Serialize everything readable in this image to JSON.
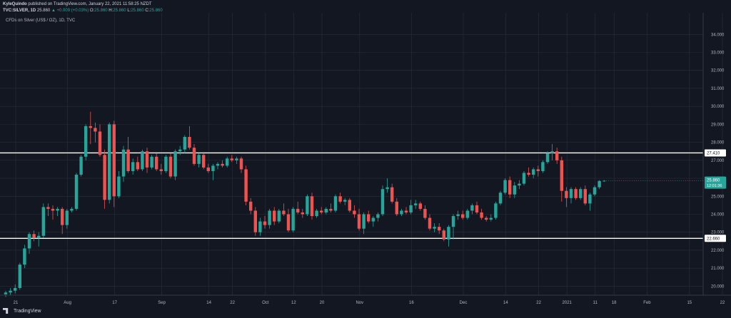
{
  "header": {
    "author": "KyleQuindo",
    "published": "published on TradingView.com, January 22, 2021 11:58:25 NZDT",
    "symbol": "TVC:SILVER, 1D",
    "price": "25.860",
    "change": "▲ +0.009 (+0.03%)",
    "ohlc": {
      "o_label": "O:",
      "o": "25.860",
      "h_label": "H:",
      "h": "25.860",
      "l_label": "L:",
      "l": "25.860",
      "c_label": "C:",
      "c": "25.860"
    }
  },
  "subtitle": "CFDs on Silver (US$ / OZ), 1D, TVC",
  "footer": {
    "brand": "TradingView"
  },
  "colors": {
    "background": "#131722",
    "up": "#26a69a",
    "down": "#ef5350",
    "grid": "#2a2e39",
    "level_line": "#ffffff",
    "current_price_bg": "#26a69a"
  },
  "chart_data": {
    "type": "candlestick",
    "title": "CFDs on Silver (US$ / OZ), 1D, TVC",
    "ylim": [
      19.5,
      35.2
    ],
    "y_ticks": [
      20.0,
      21.0,
      22.0,
      23.0,
      24.0,
      25.0,
      26.0,
      27.0,
      28.0,
      29.0,
      30.0,
      31.0,
      32.0,
      33.0,
      34.0
    ],
    "x_tick_labels": [
      "21",
      "Aug",
      "17",
      "Sep",
      "14",
      "22",
      "Oct",
      "12",
      "20",
      "Nov",
      "16",
      "Dec",
      "14",
      "22",
      "2021",
      "11",
      "18",
      "Feb",
      "15",
      "22"
    ],
    "grid": true,
    "horizontal_levels": [
      {
        "value": 27.41,
        "label": "27.410"
      },
      {
        "value": 22.66,
        "label": "22.660"
      }
    ],
    "current_price": {
      "value": 25.86,
      "label": "25.860",
      "countdown": "12:01:36"
    },
    "candles": [
      [
        19.55,
        19.75,
        19.4,
        19.65
      ],
      [
        19.65,
        19.9,
        19.5,
        19.75
      ],
      [
        19.75,
        20.1,
        19.6,
        19.9
      ],
      [
        19.9,
        21.3,
        19.8,
        21.2
      ],
      [
        21.2,
        22.3,
        21.0,
        22.1
      ],
      [
        22.1,
        23.0,
        21.8,
        22.9
      ],
      [
        22.9,
        23.1,
        22.5,
        22.7
      ],
      [
        22.7,
        23.0,
        22.2,
        22.8
      ],
      [
        22.8,
        24.6,
        22.7,
        24.4
      ],
      [
        24.4,
        24.6,
        23.9,
        24.3
      ],
      [
        24.3,
        24.5,
        23.7,
        24.2
      ],
      [
        24.2,
        24.4,
        23.9,
        24.3
      ],
      [
        24.3,
        24.4,
        22.9,
        23.4
      ],
      [
        23.4,
        24.3,
        23.2,
        24.2
      ],
      [
        24.2,
        24.4,
        24.1,
        24.3
      ],
      [
        24.3,
        26.3,
        24.2,
        26.2
      ],
      [
        26.2,
        27.3,
        26.1,
        27.2
      ],
      [
        27.2,
        29.0,
        27.0,
        28.9
      ],
      [
        28.9,
        29.7,
        27.9,
        28.8
      ],
      [
        28.8,
        29.1,
        28.0,
        28.6
      ],
      [
        28.6,
        29.0,
        27.2,
        27.3
      ],
      [
        27.3,
        27.6,
        24.3,
        24.8
      ],
      [
        24.8,
        29.1,
        24.6,
        29.0
      ],
      [
        29.0,
        29.2,
        24.4,
        25.0
      ],
      [
        25.0,
        26.4,
        24.9,
        26.1
      ],
      [
        26.1,
        27.8,
        25.8,
        27.6
      ],
      [
        27.6,
        28.3,
        26.3,
        26.4
      ],
      [
        26.4,
        27.1,
        26.2,
        26.9
      ],
      [
        26.9,
        27.2,
        26.4,
        26.5
      ],
      [
        26.5,
        27.6,
        26.4,
        27.5
      ],
      [
        27.5,
        27.7,
        26.3,
        26.6
      ],
      [
        26.6,
        27.3,
        26.5,
        27.2
      ],
      [
        27.2,
        27.4,
        26.4,
        26.5
      ],
      [
        26.5,
        26.8,
        26.2,
        26.4
      ],
      [
        26.4,
        27.3,
        26.3,
        27.2
      ],
      [
        27.2,
        27.4,
        26.0,
        26.1
      ],
      [
        26.1,
        27.6,
        25.9,
        27.5
      ],
      [
        27.5,
        27.8,
        27.3,
        27.6
      ],
      [
        27.6,
        28.4,
        27.4,
        28.3
      ],
      [
        28.3,
        28.9,
        27.6,
        27.7
      ],
      [
        27.7,
        27.9,
        26.7,
        26.8
      ],
      [
        26.8,
        27.4,
        26.6,
        27.3
      ],
      [
        27.3,
        27.4,
        26.5,
        26.6
      ],
      [
        26.6,
        26.8,
        26.3,
        26.4
      ],
      [
        26.4,
        26.8,
        25.9,
        26.7
      ],
      [
        26.7,
        26.9,
        26.5,
        26.8
      ],
      [
        26.8,
        27.0,
        26.6,
        26.7
      ],
      [
        26.7,
        27.2,
        26.6,
        27.1
      ],
      [
        27.1,
        27.3,
        26.9,
        27.0
      ],
      [
        27.0,
        27.2,
        26.8,
        27.1
      ],
      [
        27.1,
        27.2,
        26.3,
        26.5
      ],
      [
        26.5,
        26.7,
        24.5,
        24.7
      ],
      [
        24.7,
        24.9,
        24.0,
        24.2
      ],
      [
        24.2,
        24.4,
        22.8,
        23.0
      ],
      [
        23.0,
        23.8,
        22.8,
        23.6
      ],
      [
        23.6,
        23.9,
        23.2,
        23.4
      ],
      [
        23.4,
        24.3,
        23.2,
        24.2
      ],
      [
        24.2,
        24.4,
        23.4,
        23.6
      ],
      [
        23.6,
        24.3,
        23.5,
        24.2
      ],
      [
        24.2,
        24.6,
        23.9,
        24.0
      ],
      [
        24.0,
        24.3,
        23.0,
        23.1
      ],
      [
        23.1,
        24.4,
        23.0,
        24.3
      ],
      [
        24.3,
        24.7,
        24.0,
        24.1
      ],
      [
        24.1,
        24.3,
        23.8,
        24.0
      ],
      [
        24.0,
        25.1,
        23.9,
        25.0
      ],
      [
        25.0,
        25.2,
        23.7,
        23.9
      ],
      [
        23.9,
        24.3,
        23.8,
        24.2
      ],
      [
        24.2,
        24.4,
        24.0,
        24.1
      ],
      [
        24.1,
        24.4,
        24.0,
        24.3
      ],
      [
        24.3,
        24.6,
        24.1,
        24.2
      ],
      [
        24.2,
        25.1,
        24.1,
        25.0
      ],
      [
        25.0,
        25.2,
        24.6,
        24.7
      ],
      [
        24.7,
        24.9,
        24.5,
        24.8
      ],
      [
        24.8,
        24.9,
        24.1,
        24.2
      ],
      [
        24.2,
        24.5,
        23.8,
        24.0
      ],
      [
        24.0,
        24.3,
        23.1,
        23.2
      ],
      [
        23.2,
        24.1,
        22.9,
        24.0
      ],
      [
        24.0,
        24.2,
        23.5,
        23.6
      ],
      [
        23.6,
        23.9,
        23.3,
        23.8
      ],
      [
        23.8,
        24.1,
        23.6,
        24.0
      ],
      [
        24.0,
        25.6,
        23.9,
        25.4
      ],
      [
        25.4,
        26.0,
        25.2,
        25.5
      ],
      [
        25.5,
        25.7,
        24.6,
        24.7
      ],
      [
        24.7,
        24.9,
        23.9,
        24.0
      ],
      [
        24.0,
        24.3,
        23.9,
        24.2
      ],
      [
        24.2,
        24.4,
        24.0,
        24.1
      ],
      [
        24.1,
        24.8,
        24.0,
        24.5
      ],
      [
        24.5,
        24.8,
        24.3,
        24.6
      ],
      [
        24.6,
        24.7,
        24.2,
        24.3
      ],
      [
        24.3,
        24.5,
        23.7,
        23.8
      ],
      [
        23.8,
        24.0,
        23.1,
        23.2
      ],
      [
        23.2,
        23.5,
        23.0,
        23.3
      ],
      [
        23.3,
        23.5,
        22.9,
        23.1
      ],
      [
        23.1,
        23.2,
        22.5,
        22.6
      ],
      [
        22.6,
        23.4,
        22.2,
        23.3
      ],
      [
        23.3,
        24.0,
        22.6,
        23.9
      ],
      [
        23.9,
        24.2,
        23.7,
        24.0
      ],
      [
        24.0,
        24.2,
        23.7,
        23.8
      ],
      [
        23.8,
        24.3,
        23.7,
        24.2
      ],
      [
        24.2,
        24.6,
        24.0,
        24.5
      ],
      [
        24.5,
        24.7,
        24.0,
        24.1
      ],
      [
        24.1,
        24.3,
        23.7,
        23.8
      ],
      [
        23.8,
        23.9,
        23.6,
        23.7
      ],
      [
        23.7,
        24.0,
        23.6,
        23.8
      ],
      [
        23.8,
        24.7,
        23.7,
        24.6
      ],
      [
        24.6,
        25.3,
        24.5,
        25.2
      ],
      [
        25.2,
        26.0,
        25.1,
        25.9
      ],
      [
        25.9,
        26.1,
        24.9,
        25.1
      ],
      [
        25.1,
        25.8,
        24.9,
        25.6
      ],
      [
        25.6,
        25.9,
        25.4,
        25.7
      ],
      [
        25.7,
        26.4,
        25.6,
        26.3
      ],
      [
        26.3,
        26.6,
        26.1,
        26.2
      ],
      [
        26.2,
        26.6,
        26.0,
        26.5
      ],
      [
        26.5,
        26.7,
        26.1,
        26.4
      ],
      [
        26.4,
        27.0,
        26.3,
        26.9
      ],
      [
        26.9,
        27.5,
        26.8,
        27.4
      ],
      [
        27.4,
        27.9,
        27.0,
        27.5
      ],
      [
        27.5,
        27.7,
        26.8,
        27.0
      ],
      [
        27.0,
        27.2,
        24.7,
        25.3
      ],
      [
        25.3,
        25.5,
        24.4,
        24.9
      ],
      [
        24.9,
        25.5,
        24.6,
        25.4
      ],
      [
        25.4,
        25.5,
        24.8,
        24.9
      ],
      [
        24.9,
        25.5,
        24.8,
        25.4
      ],
      [
        25.4,
        25.6,
        24.5,
        24.6
      ],
      [
        24.6,
        25.2,
        24.2,
        25.1
      ],
      [
        25.1,
        25.6,
        25.0,
        25.5
      ],
      [
        25.5,
        25.9,
        25.4,
        25.85
      ],
      [
        25.85,
        25.9,
        25.8,
        25.86
      ]
    ]
  }
}
